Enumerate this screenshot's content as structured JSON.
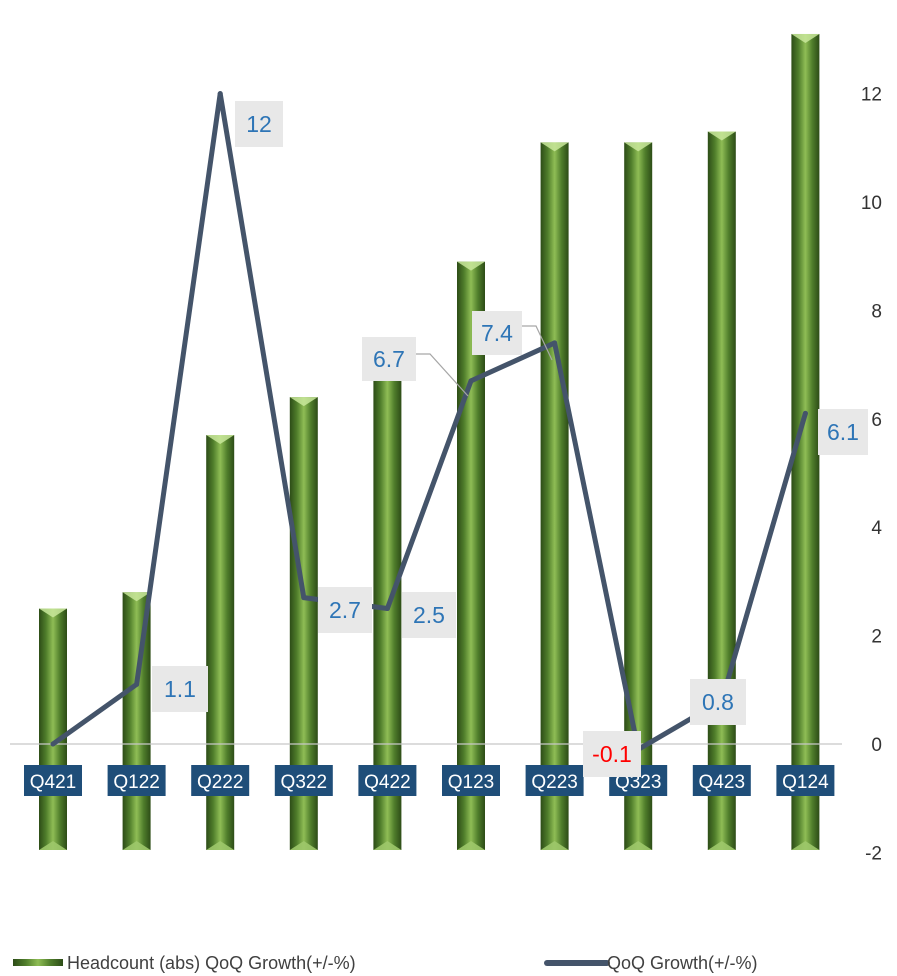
{
  "chart_data": {
    "type": "bar",
    "categories": [
      "Q421",
      "Q122",
      "Q222",
      "Q322",
      "Q422",
      "Q123",
      "Q223",
      "Q323",
      "Q423",
      "Q124"
    ],
    "series": [
      {
        "name": "Headcount (abs) QoQ Growth(+/-%)",
        "type": "bar",
        "axis": "right",
        "values": [
          2.5,
          2.8,
          5.7,
          6.4,
          7.0,
          8.9,
          11.1,
          11.1,
          11.3,
          13.1
        ],
        "color": "#4e7a2c"
      },
      {
        "name": "QoQ Growth(+/-%)",
        "type": "line",
        "axis": "right",
        "values": [
          0,
          1.1,
          12,
          2.7,
          2.5,
          6.7,
          7.4,
          -0.1,
          0.8,
          6.1
        ],
        "labels": [
          "",
          "1.1",
          "12",
          "2.7",
          "2.5",
          "6.7",
          "7.4",
          "-0.1",
          "0.8",
          "6.1"
        ],
        "color": "#44546a"
      }
    ],
    "y_axis": {
      "position": "right",
      "range": [
        -2,
        14
      ],
      "ticks": [
        "-2",
        "0",
        "2",
        "4",
        "6",
        "8",
        "10",
        "12",
        "14"
      ]
    },
    "grid": false,
    "legend": "bottom",
    "title": "",
    "xlabel": "",
    "ylabel": ""
  },
  "colors": {
    "bar": "#4e7a2c",
    "line": "#44546a",
    "category_label_bg": "#1f4e79",
    "data_label_text": "#2e75b6",
    "negative_label_text": "#ff0000",
    "data_label_bg": "#e8e8e8"
  }
}
